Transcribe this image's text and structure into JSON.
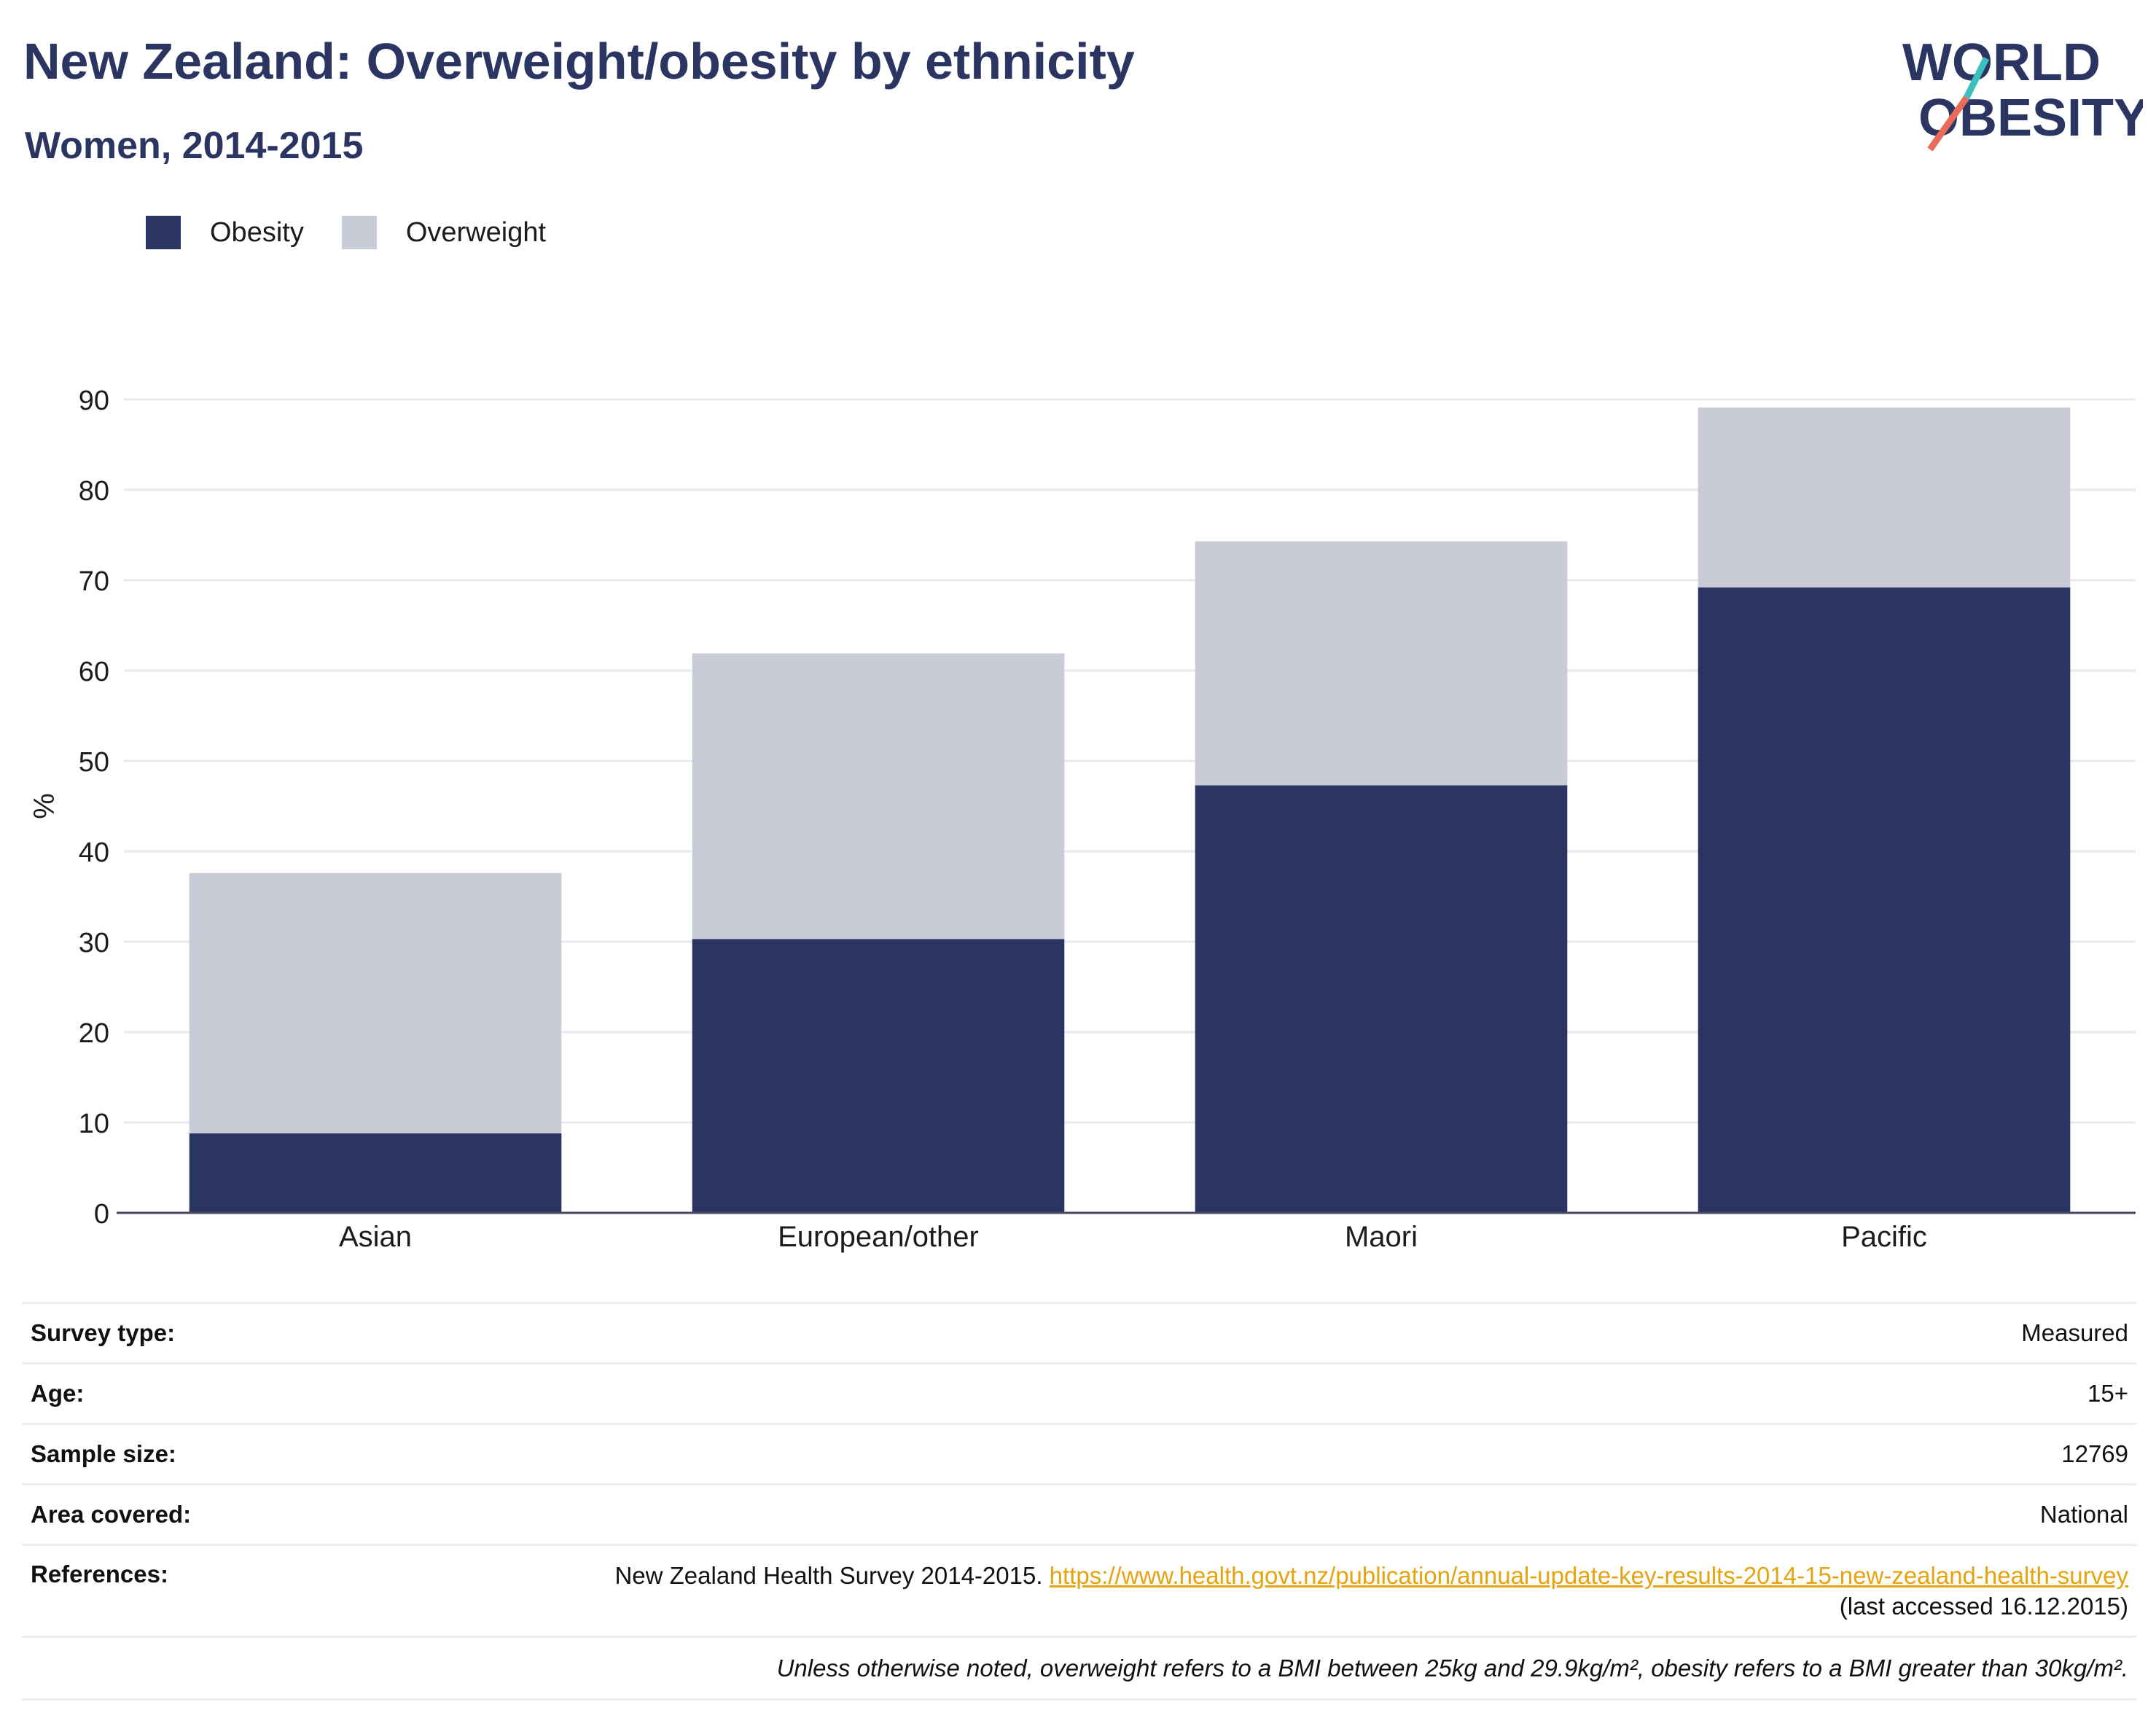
{
  "header": {
    "title": "New Zealand: Overweight/obesity by ethnicity",
    "subtitle": "Women, 2014-2015",
    "logo_line1": "WORLD",
    "logo_line2": "OBESITY"
  },
  "colors": {
    "obesity": "#2a3562",
    "overweight": "#c9cbd6",
    "title": "#2a3562",
    "link": "#e6a310",
    "logo_teal": "#3cbfbf",
    "logo_coral": "#ea6b5a"
  },
  "chart_data": {
    "type": "bar",
    "stacked": true,
    "categories": [
      "Asian",
      "European/other",
      "Maori",
      "Pacific"
    ],
    "series": [
      {
        "name": "Obesity",
        "values": [
          8.8,
          30.3,
          47.3,
          69.2
        ]
      },
      {
        "name": "Overweight",
        "values": [
          28.8,
          31.6,
          27.0,
          19.9
        ]
      }
    ],
    "title": "",
    "xlabel": "",
    "ylabel": "%",
    "ylim": [
      0,
      90
    ],
    "yticks": [
      0,
      10,
      20,
      30,
      40,
      50,
      60,
      70,
      80,
      90
    ],
    "grid": true,
    "legend": "top-left"
  },
  "info": {
    "survey_type_label": "Survey type:",
    "survey_type_value": "Measured",
    "age_label": "Age:",
    "age_value": "15+",
    "sample_size_label": "Sample size:",
    "sample_size_value": "12769",
    "area_label": "Area covered:",
    "area_value": "National",
    "references_label": "References:",
    "references_prefix": "New Zealand Health Survey 2014-2015. ",
    "references_link": "https://www.health.govt.nz/publication/annual-update-key-results-2014-15-new-zealand-health-survey",
    "references_suffix": " (last accessed 16.12.2015)",
    "note": "Unless otherwise noted, overweight refers to a BMI between 25kg and 29.9kg/m², obesity refers to a BMI greater than 30kg/m²."
  }
}
